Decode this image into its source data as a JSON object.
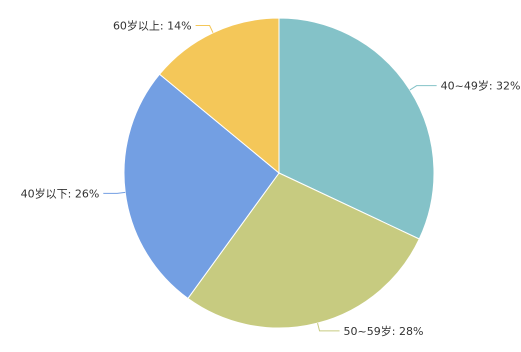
{
  "chart_data": {
    "type": "pie",
    "start_angle_deg": 90,
    "direction": "clockwise",
    "slices": [
      {
        "label": "40~49岁",
        "value": 32,
        "display": "40~49岁: 32%",
        "color": "#84c2c8"
      },
      {
        "label": "50~59岁",
        "value": 28,
        "display": "50~59岁: 28%",
        "color": "#c7cb80"
      },
      {
        "label": "40岁以下",
        "value": 26,
        "display": "40岁以下: 26%",
        "color": "#739fe3"
      },
      {
        "label": "60岁以上",
        "value": 14,
        "display": "60岁以上: 14%",
        "color": "#f4c759"
      }
    ],
    "legend": "none"
  }
}
